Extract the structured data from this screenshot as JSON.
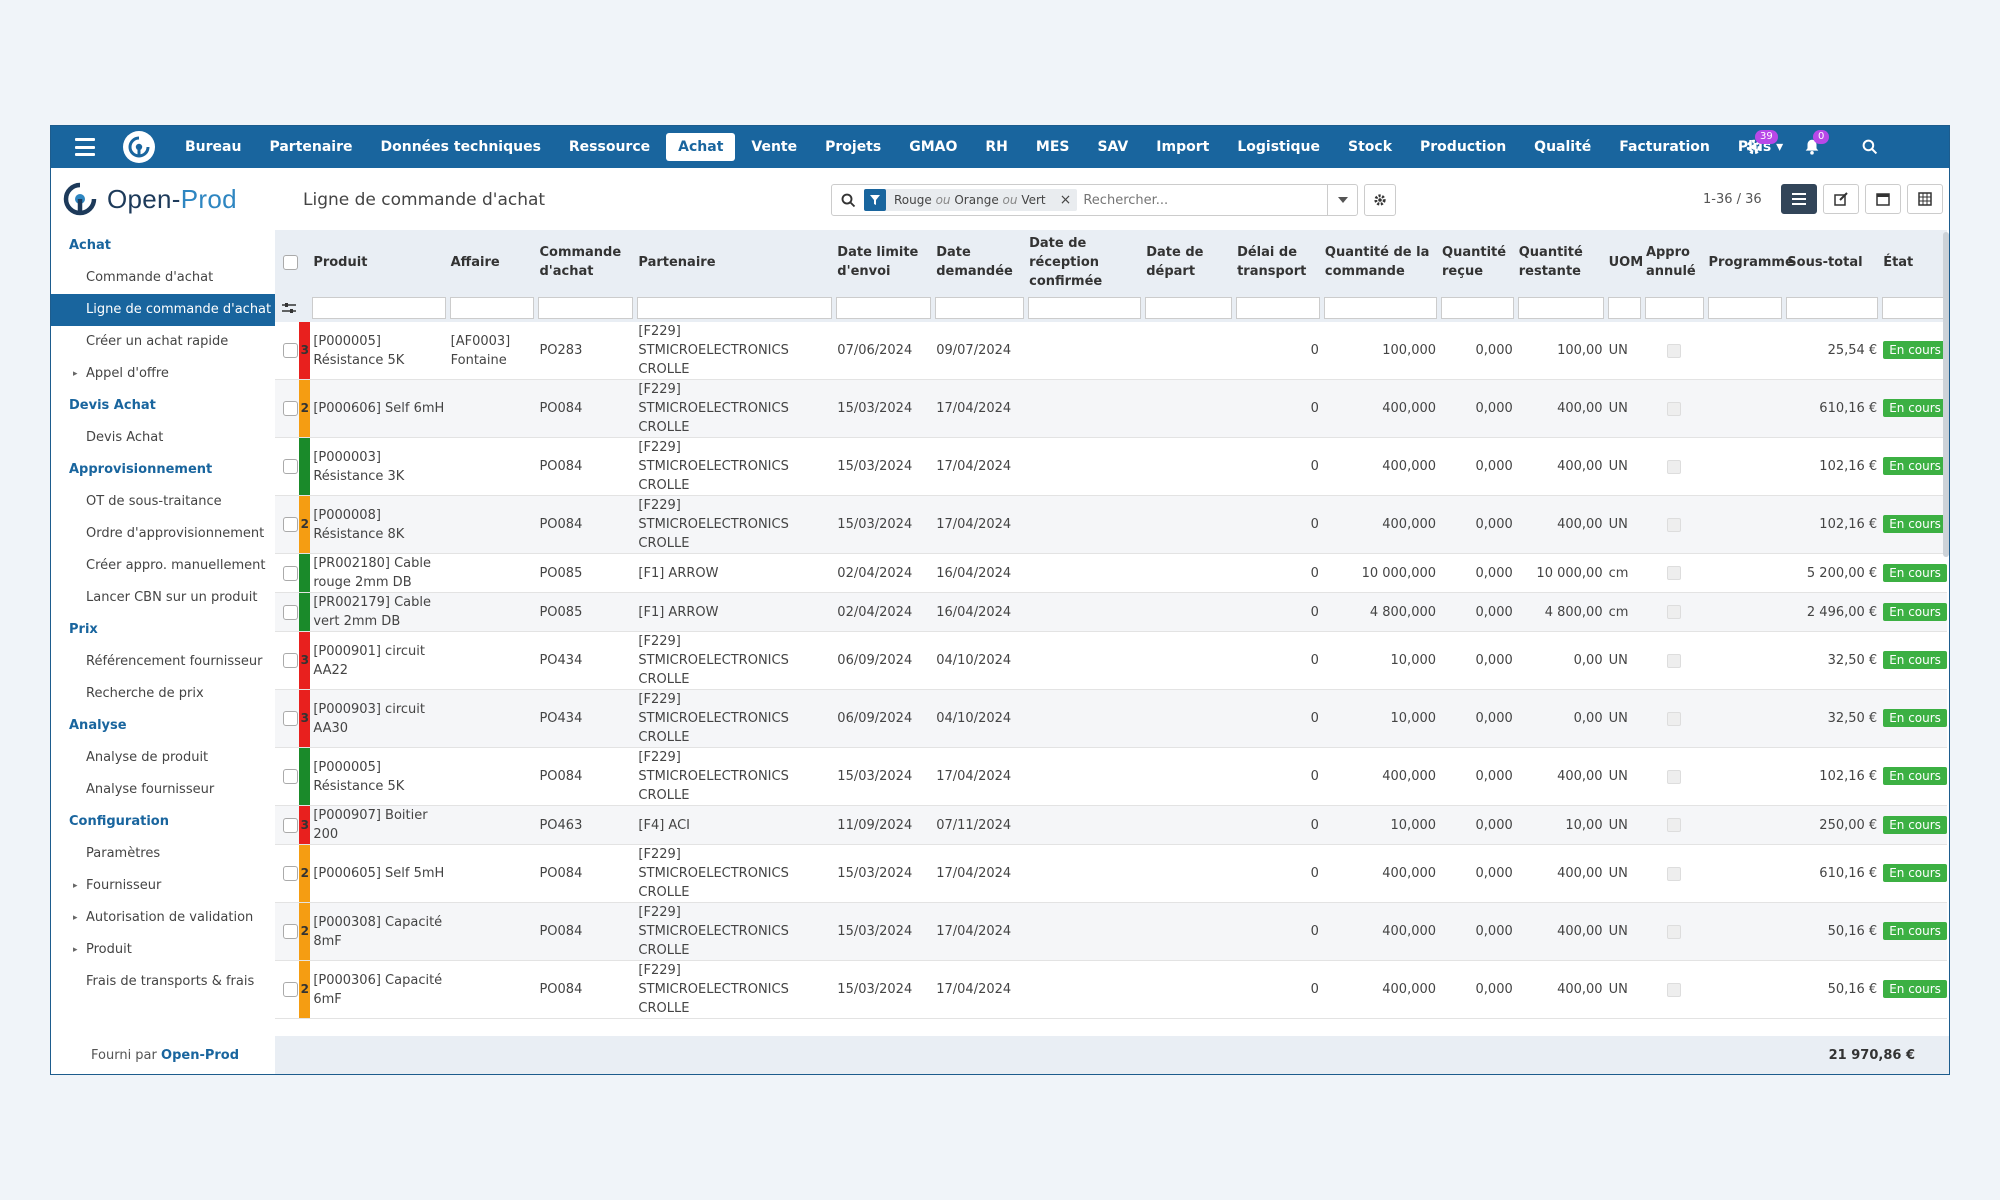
{
  "topbar": {
    "menu": [
      "Bureau",
      "Partenaire",
      "Données techniques",
      "Ressource",
      "Achat",
      "Vente",
      "Projets",
      "GMAO",
      "RH",
      "MES",
      "SAV",
      "Import",
      "Logistique",
      "Stock",
      "Production",
      "Qualité",
      "Facturation",
      "Plus ▾"
    ],
    "active": "Achat",
    "activity_count": "39",
    "notification_count": "0"
  },
  "header": {
    "brand_main": "Open-",
    "brand_accent": "Prod",
    "title": "Ligne de commande d'achat",
    "search": {
      "facet_parts": [
        "Rouge",
        "ou",
        "Orange",
        "ou",
        "Vert"
      ],
      "placeholder": "Rechercher..."
    },
    "pager": "1-36 / 36"
  },
  "sidebar": {
    "sections": [
      {
        "title": "Achat",
        "items": [
          {
            "label": "Commande d'achat"
          },
          {
            "label": "Ligne de commande d'achat",
            "active": true
          },
          {
            "label": "Créer un achat rapide"
          },
          {
            "label": "Appel d'offre",
            "caret": true
          }
        ]
      },
      {
        "title": "Devis Achat",
        "items": [
          {
            "label": "Devis Achat"
          }
        ]
      },
      {
        "title": "Approvisionnement",
        "items": [
          {
            "label": "OT de sous-traitance"
          },
          {
            "label": "Ordre d'approvisionnement"
          },
          {
            "label": "Créer appro. manuellement"
          },
          {
            "label": "Lancer CBN sur un produit"
          }
        ]
      },
      {
        "title": "Prix",
        "items": [
          {
            "label": "Référencement fournisseur"
          },
          {
            "label": "Recherche de prix"
          }
        ]
      },
      {
        "title": "Analyse",
        "items": [
          {
            "label": "Analyse de produit"
          },
          {
            "label": "Analyse fournisseur"
          }
        ]
      },
      {
        "title": "Configuration",
        "items": [
          {
            "label": "Paramètres"
          },
          {
            "label": "Fournisseur",
            "caret": true
          },
          {
            "label": "Autorisation de validation",
            "caret": true
          },
          {
            "label": "Produit",
            "caret": true
          },
          {
            "label": "Frais de transports & frais"
          }
        ]
      }
    ],
    "footer_prefix": "Fourni par",
    "footer_brand": "Open-Prod"
  },
  "table": {
    "columns": [
      "Produit",
      "Affaire",
      "Commande d'achat",
      "Partenaire",
      "Date limite d'envoi",
      "Date demandée",
      "Date de réception confirmée",
      "Date de départ",
      "Délai de transport",
      "Quantité de la commande",
      "Quantité reçue",
      "Quantité restante",
      "UOM",
      "Appro annulé",
      "Programme",
      "Sous-total",
      "État"
    ],
    "colors": {
      "red": "#e8201e",
      "orange": "#f59d12",
      "green": "#1a8a2a"
    },
    "rows": [
      {
        "prio_color": "red",
        "prio": "3",
        "produit": "[P000005] Résistance 5K",
        "affaire": "[AF0003] Fontaine",
        "commande": "PO283",
        "partenaire": "[F229] STMICROELECTRONICS CROLLE",
        "date_envoi": "07/06/2024",
        "date_demandee": "09/07/2024",
        "date_reception": "",
        "date_depart": "",
        "delai": "0",
        "qte_cmd": "100,000",
        "qte_recue": "0,000",
        "qte_restante": "100,00",
        "uom": "UN",
        "programme": "",
        "sous_total": "25,54 €",
        "etat": "En cours"
      },
      {
        "prio_color": "orange",
        "prio": "2",
        "produit": "[P000606] Self 6mH",
        "affaire": "",
        "commande": "PO084",
        "partenaire": "[F229] STMICROELECTRONICS CROLLE",
        "date_envoi": "15/03/2024",
        "date_demandee": "17/04/2024",
        "date_reception": "",
        "date_depart": "",
        "delai": "0",
        "qte_cmd": "400,000",
        "qte_recue": "0,000",
        "qte_restante": "400,00",
        "uom": "UN",
        "programme": "",
        "sous_total": "610,16 €",
        "etat": "En cours"
      },
      {
        "prio_color": "green",
        "prio": "",
        "produit": "[P000003] Résistance 3K",
        "affaire": "",
        "commande": "PO084",
        "partenaire": "[F229] STMICROELECTRONICS CROLLE",
        "date_envoi": "15/03/2024",
        "date_demandee": "17/04/2024",
        "date_reception": "",
        "date_depart": "",
        "delai": "0",
        "qte_cmd": "400,000",
        "qte_recue": "0,000",
        "qte_restante": "400,00",
        "uom": "UN",
        "programme": "",
        "sous_total": "102,16 €",
        "etat": "En cours"
      },
      {
        "prio_color": "orange",
        "prio": "2",
        "produit": "[P000008] Résistance 8K",
        "affaire": "",
        "commande": "PO084",
        "partenaire": "[F229] STMICROELECTRONICS CROLLE",
        "date_envoi": "15/03/2024",
        "date_demandee": "17/04/2024",
        "date_reception": "",
        "date_depart": "",
        "delai": "0",
        "qte_cmd": "400,000",
        "qte_recue": "0,000",
        "qte_restante": "400,00",
        "uom": "UN",
        "programme": "",
        "sous_total": "102,16 €",
        "etat": "En cours"
      },
      {
        "prio_color": "green",
        "prio": "",
        "produit": "[PR002180] Cable rouge 2mm DB",
        "affaire": "",
        "commande": "PO085",
        "partenaire": "[F1] ARROW",
        "date_envoi": "02/04/2024",
        "date_demandee": "16/04/2024",
        "date_reception": "",
        "date_depart": "",
        "delai": "0",
        "qte_cmd": "10 000,000",
        "qte_recue": "0,000",
        "qte_restante": "10 000,00",
        "uom": "cm",
        "programme": "",
        "sous_total": "5 200,00 €",
        "etat": "En cours"
      },
      {
        "prio_color": "green",
        "prio": "",
        "produit": "[PR002179] Cable vert 2mm DB",
        "affaire": "",
        "commande": "PO085",
        "partenaire": "[F1] ARROW",
        "date_envoi": "02/04/2024",
        "date_demandee": "16/04/2024",
        "date_reception": "",
        "date_depart": "",
        "delai": "0",
        "qte_cmd": "4 800,000",
        "qte_recue": "0,000",
        "qte_restante": "4 800,00",
        "uom": "cm",
        "programme": "",
        "sous_total": "2 496,00 €",
        "etat": "En cours"
      },
      {
        "prio_color": "red",
        "prio": "3",
        "produit": "[P000901] circuit AA22",
        "affaire": "",
        "commande": "PO434",
        "partenaire": "[F229] STMICROELECTRONICS CROLLE",
        "date_envoi": "06/09/2024",
        "date_demandee": "04/10/2024",
        "date_reception": "",
        "date_depart": "",
        "delai": "0",
        "qte_cmd": "10,000",
        "qte_recue": "0,000",
        "qte_restante": "0,00",
        "uom": "UN",
        "programme": "",
        "sous_total": "32,50 €",
        "etat": "En cours"
      },
      {
        "prio_color": "red",
        "prio": "3",
        "produit": "[P000903] circuit AA30",
        "affaire": "",
        "commande": "PO434",
        "partenaire": "[F229] STMICROELECTRONICS CROLLE",
        "date_envoi": "06/09/2024",
        "date_demandee": "04/10/2024",
        "date_reception": "",
        "date_depart": "",
        "delai": "0",
        "qte_cmd": "10,000",
        "qte_recue": "0,000",
        "qte_restante": "0,00",
        "uom": "UN",
        "programme": "",
        "sous_total": "32,50 €",
        "etat": "En cours"
      },
      {
        "prio_color": "green",
        "prio": "",
        "produit": "[P000005] Résistance 5K",
        "affaire": "",
        "commande": "PO084",
        "partenaire": "[F229] STMICROELECTRONICS CROLLE",
        "date_envoi": "15/03/2024",
        "date_demandee": "17/04/2024",
        "date_reception": "",
        "date_depart": "",
        "delai": "0",
        "qte_cmd": "400,000",
        "qte_recue": "0,000",
        "qte_restante": "400,00",
        "uom": "UN",
        "programme": "",
        "sous_total": "102,16 €",
        "etat": "En cours"
      },
      {
        "prio_color": "red",
        "prio": "3",
        "produit": "[P000907] Boitier 200",
        "affaire": "",
        "commande": "PO463",
        "partenaire": "[F4] ACI",
        "date_envoi": "11/09/2024",
        "date_demandee": "07/11/2024",
        "date_reception": "",
        "date_depart": "",
        "delai": "0",
        "qte_cmd": "10,000",
        "qte_recue": "0,000",
        "qte_restante": "10,00",
        "uom": "UN",
        "programme": "",
        "sous_total": "250,00 €",
        "etat": "En cours"
      },
      {
        "prio_color": "orange",
        "prio": "2",
        "produit": "[P000605] Self 5mH",
        "affaire": "",
        "commande": "PO084",
        "partenaire": "[F229] STMICROELECTRONICS CROLLE",
        "date_envoi": "15/03/2024",
        "date_demandee": "17/04/2024",
        "date_reception": "",
        "date_depart": "",
        "delai": "0",
        "qte_cmd": "400,000",
        "qte_recue": "0,000",
        "qte_restante": "400,00",
        "uom": "UN",
        "programme": "",
        "sous_total": "610,16 €",
        "etat": "En cours"
      },
      {
        "prio_color": "orange",
        "prio": "2",
        "produit": "[P000308] Capacité 8mF",
        "affaire": "",
        "commande": "PO084",
        "partenaire": "[F229] STMICROELECTRONICS CROLLE",
        "date_envoi": "15/03/2024",
        "date_demandee": "17/04/2024",
        "date_reception": "",
        "date_depart": "",
        "delai": "0",
        "qte_cmd": "400,000",
        "qte_recue": "0,000",
        "qte_restante": "400,00",
        "uom": "UN",
        "programme": "",
        "sous_total": "50,16 €",
        "etat": "En cours"
      },
      {
        "prio_color": "orange",
        "prio": "2",
        "produit": "[P000306] Capacité 6mF",
        "affaire": "",
        "commande": "PO084",
        "partenaire": "[F229] STMICROELECTRONICS CROLLE",
        "date_envoi": "15/03/2024",
        "date_demandee": "17/04/2024",
        "date_reception": "",
        "date_depart": "",
        "delai": "0",
        "qte_cmd": "400,000",
        "qte_recue": "0,000",
        "qte_restante": "400,00",
        "uom": "UN",
        "programme": "",
        "sous_total": "50,16 €",
        "etat": "En cours"
      }
    ],
    "total": "21 970,86 €"
  }
}
